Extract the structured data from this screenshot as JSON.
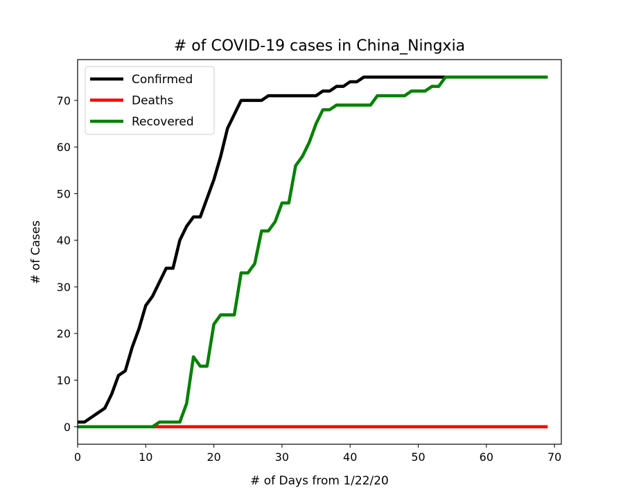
{
  "chart_data": {
    "type": "line",
    "title": "# of COVID-19 cases in China_Ningxia",
    "xlabel": "# of Days from 1/22/20",
    "ylabel": "# of Cases",
    "xlim": [
      0,
      71
    ],
    "ylim": [
      -3.75,
      78.75
    ],
    "xticks": [
      0,
      10,
      20,
      30,
      40,
      50,
      60,
      70
    ],
    "yticks": [
      0,
      10,
      20,
      30,
      40,
      50,
      60,
      70
    ],
    "legend_position": "top-left",
    "grid": false,
    "series": [
      {
        "name": "Confirmed",
        "color": "#000000",
        "x": [
          0,
          1,
          2,
          3,
          4,
          5,
          6,
          7,
          8,
          9,
          10,
          11,
          12,
          13,
          14,
          15,
          16,
          17,
          18,
          19,
          20,
          21,
          22,
          23,
          24,
          25,
          26,
          27,
          28,
          29,
          30,
          31,
          32,
          33,
          34,
          35,
          36,
          37,
          38,
          39,
          40,
          41,
          42,
          43,
          44,
          45,
          46,
          47,
          48,
          49,
          50,
          51,
          52,
          53,
          54,
          55,
          56,
          57,
          58,
          59,
          60,
          61,
          62,
          63,
          64,
          65,
          66,
          67,
          68,
          69
        ],
        "values": [
          1,
          1,
          2,
          3,
          4,
          7,
          11,
          12,
          17,
          21,
          26,
          28,
          31,
          34,
          34,
          40,
          43,
          45,
          45,
          49,
          53,
          58,
          64,
          67,
          70,
          70,
          70,
          70,
          71,
          71,
          71,
          71,
          71,
          71,
          71,
          71,
          72,
          72,
          73,
          73,
          74,
          74,
          75,
          75,
          75,
          75,
          75,
          75,
          75,
          75,
          75,
          75,
          75,
          75,
          75,
          75,
          75,
          75,
          75,
          75,
          75,
          75,
          75,
          75,
          75,
          75,
          75,
          75,
          75,
          75
        ]
      },
      {
        "name": "Deaths",
        "color": "#ff0000",
        "x": [
          0,
          69
        ],
        "values": [
          0,
          0
        ]
      },
      {
        "name": "Recovered",
        "color": "#008000",
        "x": [
          0,
          1,
          2,
          3,
          4,
          5,
          6,
          7,
          8,
          9,
          10,
          11,
          12,
          13,
          14,
          15,
          16,
          17,
          18,
          19,
          20,
          21,
          22,
          23,
          24,
          25,
          26,
          27,
          28,
          29,
          30,
          31,
          32,
          33,
          34,
          35,
          36,
          37,
          38,
          39,
          40,
          41,
          42,
          43,
          44,
          45,
          46,
          47,
          48,
          49,
          50,
          51,
          52,
          53,
          54,
          55,
          56,
          57,
          58,
          59,
          60,
          61,
          62,
          63,
          64,
          65,
          66,
          67,
          68,
          69
        ],
        "values": [
          0,
          0,
          0,
          0,
          0,
          0,
          0,
          0,
          0,
          0,
          0,
          0,
          1,
          1,
          1,
          1,
          5,
          15,
          13,
          13,
          22,
          24,
          24,
          24,
          33,
          33,
          35,
          42,
          42,
          44,
          48,
          48,
          56,
          58,
          61,
          65,
          68,
          68,
          69,
          69,
          69,
          69,
          69,
          69,
          71,
          71,
          71,
          71,
          71,
          72,
          72,
          72,
          73,
          73,
          75,
          75,
          75,
          75,
          75,
          75,
          75,
          75,
          75,
          75,
          75,
          75,
          75,
          75,
          75,
          75
        ]
      }
    ]
  }
}
